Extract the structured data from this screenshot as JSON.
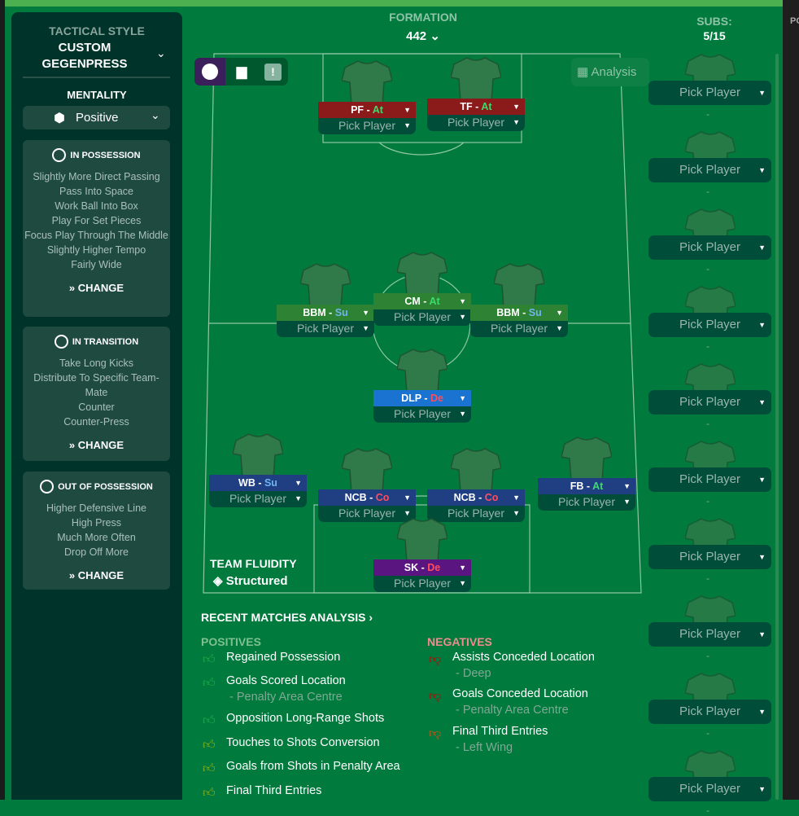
{
  "tactical_style": {
    "label": "TACTICAL STYLE",
    "value": "CUSTOM GEGENPRESS"
  },
  "mentality": {
    "label": "MENTALITY",
    "value": "Positive"
  },
  "in_possession": {
    "title": "IN POSSESSION",
    "items": [
      "Slightly More Direct Passing",
      "Pass Into Space",
      "Work Ball Into Box",
      "Play For Set Pieces",
      "Focus Play Through The Middle",
      "Slightly Higher Tempo",
      "Fairly Wide"
    ],
    "change": "CHANGE"
  },
  "in_transition": {
    "title": "IN TRANSITION",
    "items": [
      "Take Long Kicks",
      "Distribute To Specific Team-Mate",
      "Counter",
      "Counter-Press"
    ],
    "change": "CHANGE"
  },
  "out_of_possession": {
    "title": "OUT OF POSSESSION",
    "items": [
      "Higher Defensive Line",
      "High Press",
      "Much More Often",
      "Drop Off More"
    ],
    "change": "CHANGE"
  },
  "formation": {
    "label": "FORMATION",
    "value": "442"
  },
  "subs": {
    "label": "SUBS:",
    "value": "5/15",
    "slots": [
      "Pick Player",
      "Pick Player",
      "Pick Player",
      "Pick Player",
      "Pick Player",
      "Pick Player",
      "Pick Player",
      "Pick Player",
      "Pick Player",
      "Pick Player"
    ],
    "empty": "-"
  },
  "analysis_button": "Analysis",
  "right_panel_label": "PO",
  "players": [
    {
      "role": "PF",
      "duty": "At",
      "player": "Pick Player",
      "color": "#8b1a1a",
      "duty_color": "#3ddc6a"
    },
    {
      "role": "TF",
      "duty": "At",
      "player": "Pick Player",
      "color": "#8b1a1a",
      "duty_color": "#3ddc6a"
    },
    {
      "role": "BBM",
      "duty": "Su",
      "player": "Pick Player",
      "color": "#2e8233",
      "duty_color": "#6fb4f0"
    },
    {
      "role": "CM",
      "duty": "At",
      "player": "Pick Player",
      "color": "#2e8233",
      "duty_color": "#3ddc6a"
    },
    {
      "role": "BBM",
      "duty": "Su",
      "player": "Pick Player",
      "color": "#2e8233",
      "duty_color": "#6fb4f0"
    },
    {
      "role": "DLP",
      "duty": "De",
      "player": "Pick Player",
      "color": "#1a73d0",
      "duty_color": "#ff4d5e"
    },
    {
      "role": "WB",
      "duty": "Su",
      "player": "Pick Player",
      "color": "#1f3f82",
      "duty_color": "#6fb4f0"
    },
    {
      "role": "NCB",
      "duty": "Co",
      "player": "Pick Player",
      "color": "#1f3f82",
      "duty_color": "#ff4d5e"
    },
    {
      "role": "NCB",
      "duty": "Co",
      "player": "Pick Player",
      "color": "#1f3f82",
      "duty_color": "#ff4d5e"
    },
    {
      "role": "FB",
      "duty": "At",
      "player": "Pick Player",
      "color": "#1f3f82",
      "duty_color": "#3ddc6a"
    },
    {
      "role": "SK",
      "duty": "De",
      "player": "Pick Player",
      "color": "#5a1580",
      "duty_color": "#ff4d5e"
    }
  ],
  "team_fluidity": {
    "label": "TEAM FLUIDITY",
    "value": "Structured"
  },
  "recent": {
    "title": "RECENT MATCHES ANALYSIS",
    "positives_label": "POSITIVES",
    "negatives_label": "NEGATIVES",
    "positives": [
      {
        "text": "Regained Possession",
        "sub": "",
        "level": "strong"
      },
      {
        "text": "Goals Scored Location",
        "sub": "- Penalty Area Centre",
        "level": "strong"
      },
      {
        "text": "Opposition Long-Range Shots",
        "sub": "",
        "level": "strong"
      },
      {
        "text": "Touches to Shots Conversion",
        "sub": "",
        "level": "mild"
      },
      {
        "text": "Goals from Shots in Penalty Area",
        "sub": "",
        "level": "mild"
      },
      {
        "text": "Final Third Entries",
        "sub": "",
        "level": "mild"
      }
    ],
    "negatives": [
      {
        "text": "Assists Conceded Location",
        "sub": "- Deep",
        "level": "strong"
      },
      {
        "text": "Goals Conceded Location",
        "sub": "- Penalty Area Centre",
        "level": "strong"
      },
      {
        "text": "Final Third Entries",
        "sub": "- Left Wing",
        "level": "mild"
      }
    ]
  }
}
